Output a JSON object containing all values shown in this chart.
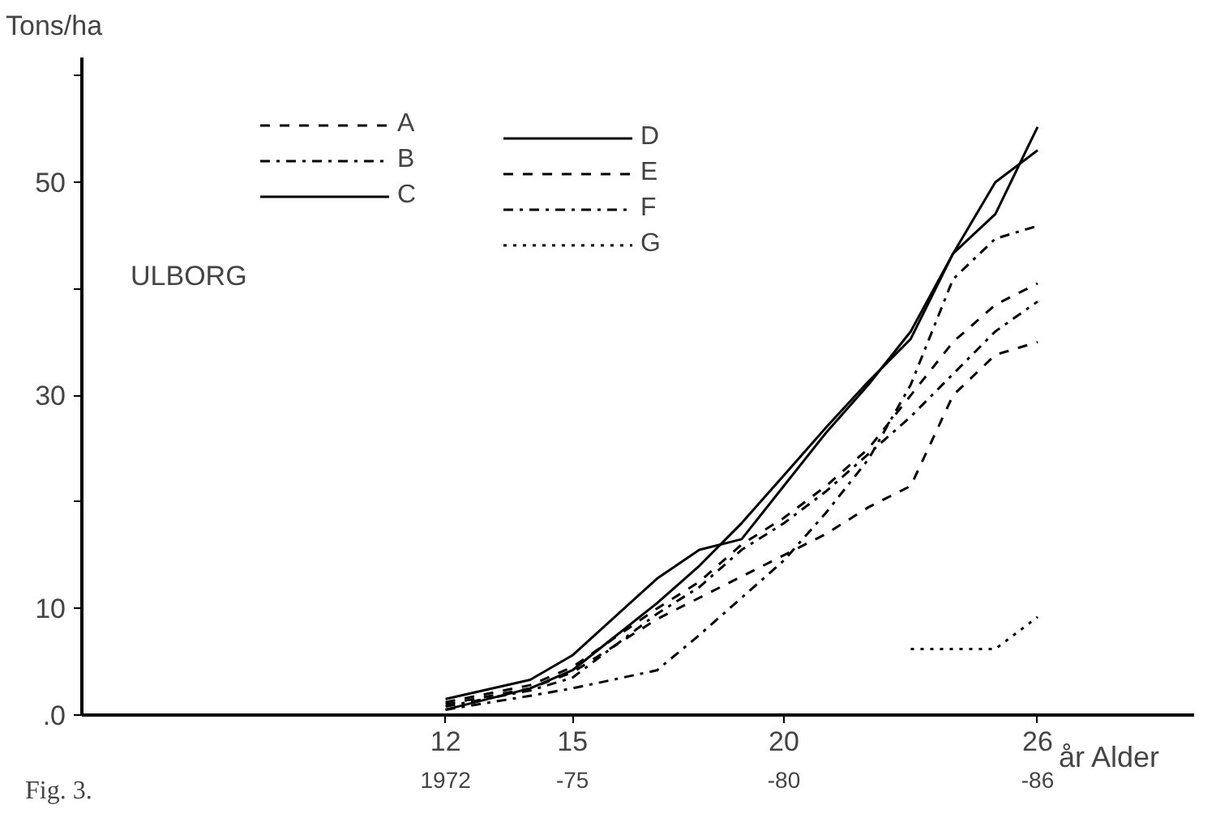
{
  "chart_data": {
    "type": "line",
    "ylabel": "Tons/ha",
    "xlabel": "år Alder",
    "annotations": [
      "ULBORG",
      "Fig. 3.",
      "1972",
      "-75",
      "-80",
      "-86"
    ],
    "x": [
      12,
      14,
      15,
      17,
      18,
      19,
      20,
      21,
      22,
      23,
      24,
      25,
      26
    ],
    "series": [
      {
        "name": "A",
        "color": "#000000",
        "line_style": "dashed",
        "values": [
          1.0,
          2.5,
          4,
          9,
          11,
          13,
          15,
          17,
          19.5,
          21.5,
          30,
          33.8,
          35
        ]
      },
      {
        "name": "B",
        "color": "#000000",
        "line_style": "dashdot",
        "values": [
          0.8,
          2.3,
          3.5,
          9.5,
          12,
          15.5,
          18,
          21,
          24.5,
          28,
          32,
          36,
          38.8
        ]
      },
      {
        "name": "C",
        "color": "#000000",
        "line_style": "solid",
        "values": [
          1.5,
          3.3,
          5.6,
          12.8,
          15.5,
          16.5,
          21.5,
          26.5,
          31,
          36,
          43.3,
          50,
          53
        ]
      },
      {
        "name": "D",
        "color": "#000000",
        "line_style": "solid",
        "values": [
          0.5,
          2.5,
          4.2,
          10.5,
          14,
          18,
          22.5,
          27,
          31.3,
          35.3,
          43.3,
          47,
          55.2
        ]
      },
      {
        "name": "E",
        "color": "#000000",
        "line_style": "dashed",
        "values": [
          1.2,
          2.8,
          4.5,
          10,
          12.5,
          16,
          18.5,
          21.5,
          25,
          30,
          35,
          38.5,
          40.5
        ]
      },
      {
        "name": "F",
        "color": "#000000",
        "line_style": "dashdot",
        "values": [
          0.5,
          1.8,
          2.5,
          4.2,
          7.5,
          11,
          14.5,
          19,
          24,
          31,
          40.9,
          44.7,
          45.9
        ]
      },
      {
        "name": "G",
        "color": "#000000",
        "line_style": "dotted",
        "x": [
          23,
          25,
          26
        ],
        "values": [
          6.2,
          6.2,
          9.2
        ]
      }
    ],
    "xlim": [
      3.4,
      29.7
    ],
    "ylim": [
      0,
      61.7
    ],
    "xticks": [
      12,
      15,
      20,
      26
    ],
    "yticks": [
      {
        "value": 0,
        "label": ".0"
      },
      10,
      {
        "value": 20,
        "label": null
      },
      30,
      {
        "value": 40,
        "label": null
      },
      50,
      {
        "value": 60,
        "label": null
      }
    ],
    "legend": "top left"
  }
}
